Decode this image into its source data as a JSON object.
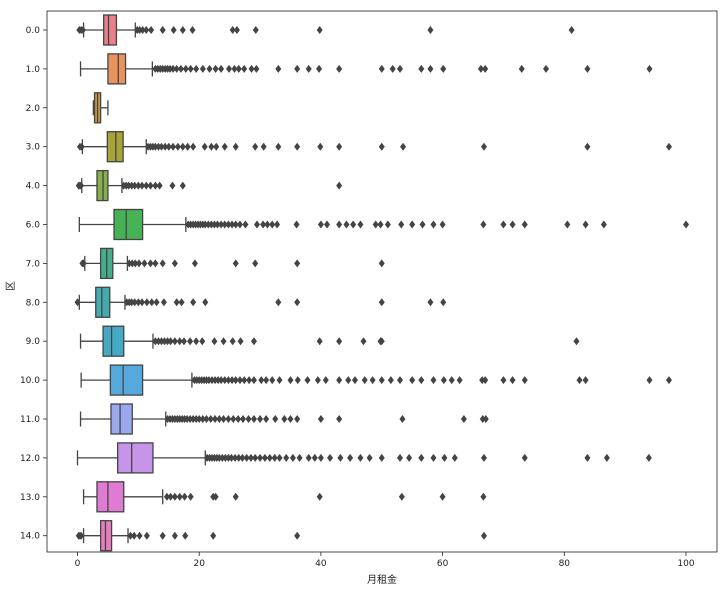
{
  "chart_data": {
    "type": "boxplot",
    "orientation": "horizontal",
    "xlabel": "月租金",
    "ylabel": "区",
    "xlim": [
      -5,
      105
    ],
    "xticks": [
      "0",
      "20",
      "40",
      "60",
      "80",
      "100"
    ],
    "xtick_values": [
      0,
      20,
      40,
      60,
      80,
      100
    ],
    "grid": false,
    "legend": "none",
    "categories": [
      "0.0",
      "1.0",
      "2.0",
      "3.0",
      "4.0",
      "6.0",
      "7.0",
      "8.0",
      "9.0",
      "10.0",
      "11.0",
      "12.0",
      "13.0",
      "14.0"
    ],
    "boxes": [
      {
        "label": "0.0",
        "color": "#e8818b",
        "whisker_low": 1.0,
        "q1": 4.3,
        "median": 5.1,
        "q3": 6.4,
        "whisker_high": 9.5,
        "outliers": [
          0.3,
          0.6,
          0.9,
          9.8,
          10.2,
          10.7,
          11.3,
          12.1,
          14.0,
          15.8,
          17.3,
          18.9,
          25.5,
          26.2,
          29.3,
          39.8,
          58.0,
          81.2
        ]
      },
      {
        "label": "1.0",
        "color": "#e8935c",
        "whisker_low": 0.5,
        "q1": 5.0,
        "median": 6.7,
        "q3": 7.9,
        "whisker_high": 12.3,
        "outliers": [
          12.8,
          13.2,
          13.6,
          14.0,
          14.4,
          14.8,
          15.2,
          15.7,
          16.3,
          17.0,
          17.8,
          18.6,
          19.5,
          20.6,
          21.7,
          22.7,
          23.6,
          24.9,
          25.8,
          26.5,
          27.4,
          28.6,
          29.4,
          33.0,
          36.1,
          38.0,
          39.7,
          43.0,
          50.0,
          51.8,
          53.0,
          56.5,
          58.0,
          60.1,
          66.3,
          67.0,
          73.0,
          77.0,
          83.8,
          94.0
        ]
      },
      {
        "label": "2.0",
        "color": "#c99a3a",
        "whisker_low": 2.6,
        "q1": 2.8,
        "median": 3.3,
        "q3": 3.8,
        "whisker_high": 5.0,
        "outliers": []
      },
      {
        "label": "3.0",
        "color": "#a7a339",
        "whisker_low": 0.8,
        "q1": 4.9,
        "median": 6.3,
        "q3": 7.5,
        "whisker_high": 11.3,
        "outliers": [
          0.4,
          0.7,
          11.6,
          12.0,
          12.4,
          12.8,
          13.3,
          13.8,
          14.4,
          15.0,
          15.7,
          16.5,
          17.3,
          18.1,
          19.0,
          20.9,
          22.0,
          22.8,
          24.2,
          26.0,
          29.2,
          30.6,
          33.0,
          36.1,
          39.9,
          43.0,
          50.0,
          53.5,
          66.8,
          83.8,
          97.2
        ]
      },
      {
        "label": "4.0",
        "color": "#86b04a",
        "whisker_low": 0.7,
        "q1": 3.2,
        "median": 4.2,
        "q3": 5.0,
        "whisker_high": 7.3,
        "outliers": [
          0.2,
          0.4,
          0.6,
          7.6,
          8.0,
          8.4,
          8.9,
          9.4,
          10.0,
          10.6,
          11.3,
          12.0,
          12.8,
          13.5,
          15.6,
          17.3,
          43.0
        ]
      },
      {
        "label": "6.0",
        "color": "#46b155",
        "whisker_low": 0.3,
        "q1": 6.0,
        "median": 8.0,
        "q3": 10.7,
        "whisker_high": 17.8,
        "outliers": [
          18.2,
          18.6,
          19.0,
          19.4,
          19.8,
          20.2,
          20.6,
          21.0,
          21.5,
          22.0,
          22.5,
          23.0,
          23.6,
          24.2,
          24.8,
          25.4,
          26.0,
          26.7,
          27.6,
          29.5,
          30.5,
          31.2,
          32.0,
          32.8,
          36.0,
          40.0,
          41.0,
          43.0,
          44.2,
          45.3,
          46.5,
          49.0,
          49.8,
          51.0,
          53.2,
          55.0,
          56.7,
          58.5,
          60.0,
          66.7,
          70.0,
          71.5,
          73.5,
          80.5,
          83.5,
          86.5,
          100.0
        ]
      },
      {
        "label": "7.0",
        "color": "#45ad8b",
        "whisker_low": 1.2,
        "q1": 3.8,
        "median": 4.8,
        "q3": 5.8,
        "whisker_high": 8.2,
        "outliers": [
          0.8,
          1.0,
          8.5,
          9.0,
          9.5,
          10.1,
          11.0,
          12.0,
          12.8,
          14.0,
          16.0,
          19.3,
          26.0,
          29.2,
          36.1,
          50.0
        ]
      },
      {
        "label": "8.0",
        "color": "#43abb0",
        "whisker_low": 0.3,
        "q1": 3.0,
        "median": 4.0,
        "q3": 5.3,
        "whisker_high": 7.8,
        "outliers": [
          0.0,
          8.1,
          8.5,
          8.9,
          9.4,
          10.0,
          10.6,
          11.4,
          12.2,
          13.0,
          14.2,
          16.3,
          17.1,
          19.0,
          21.0,
          33.0,
          36.1,
          50.0,
          58.0,
          60.1
        ]
      },
      {
        "label": "9.0",
        "color": "#44a9c4",
        "whisker_low": 0.5,
        "q1": 4.2,
        "median": 5.6,
        "q3": 7.6,
        "whisker_high": 12.4,
        "outliers": [
          12.8,
          13.3,
          13.8,
          14.3,
          14.8,
          15.3,
          16.0,
          16.8,
          17.5,
          18.5,
          19.5,
          20.5,
          22.5,
          24.0,
          25.5,
          26.8,
          29.0,
          39.8,
          43.0,
          47.0,
          49.8,
          50.0,
          82.0
        ]
      },
      {
        "label": "10.0",
        "color": "#55a9dc",
        "whisker_low": 0.6,
        "q1": 5.4,
        "median": 7.5,
        "q3": 10.7,
        "whisker_high": 18.8,
        "outliers": [
          19.2,
          19.6,
          20.0,
          20.4,
          20.8,
          21.2,
          21.6,
          22.1,
          22.6,
          23.1,
          23.6,
          24.2,
          24.8,
          25.4,
          26.0,
          26.7,
          27.4,
          28.2,
          29.0,
          30.2,
          31.0,
          32.0,
          33.2,
          35.0,
          36.2,
          37.8,
          39.5,
          40.8,
          43.0,
          44.5,
          45.6,
          47.2,
          48.5,
          50.0,
          51.5,
          53.0,
          55.0,
          56.5,
          58.5,
          60.2,
          61.5,
          62.8,
          66.5,
          67.0,
          70.0,
          71.5,
          73.5,
          82.5,
          83.5,
          94.0,
          97.2
        ]
      },
      {
        "label": "11.0",
        "color": "#9aa8ee",
        "whisker_low": 0.5,
        "q1": 5.5,
        "median": 7.0,
        "q3": 9.0,
        "whisker_high": 14.5,
        "outliers": [
          14.8,
          15.2,
          15.6,
          16.0,
          16.4,
          16.8,
          17.2,
          17.6,
          18.0,
          18.5,
          19.0,
          19.5,
          20.0,
          20.6,
          21.2,
          21.9,
          22.6,
          23.3,
          24.0,
          24.8,
          25.6,
          26.4,
          27.2,
          28.1,
          29.0,
          30.0,
          31.0,
          32.5,
          34.0,
          35.0,
          36.1,
          40.0,
          43.0,
          53.4,
          63.5,
          66.6,
          67.1
        ]
      },
      {
        "label": "12.0",
        "color": "#c694e9",
        "whisker_low": 0.0,
        "q1": 6.6,
        "median": 8.9,
        "q3": 12.4,
        "whisker_high": 21.0,
        "outliers": [
          21.3,
          21.7,
          22.1,
          22.5,
          22.9,
          23.3,
          23.8,
          24.3,
          24.8,
          25.3,
          25.9,
          26.5,
          27.1,
          27.8,
          28.5,
          29.2,
          30.0,
          30.8,
          31.6,
          32.4,
          33.2,
          34.3,
          35.4,
          36.5,
          38.0,
          39.0,
          40.0,
          41.5,
          43.2,
          44.8,
          46.5,
          48.0,
          50.0,
          53.0,
          54.5,
          56.5,
          58.5,
          60.3,
          62.0,
          66.8,
          73.5,
          83.8,
          87.0,
          93.9
        ]
      },
      {
        "label": "13.0",
        "color": "#e07bd4",
        "whisker_low": 1.0,
        "q1": 3.2,
        "median": 5.0,
        "q3": 7.6,
        "whisker_high": 14.0,
        "outliers": [
          14.7,
          15.3,
          16.0,
          16.8,
          17.6,
          18.6,
          22.3,
          22.7,
          26.0,
          39.8,
          53.3,
          60.0,
          66.7
        ]
      },
      {
        "label": "14.0",
        "color": "#e77fbe",
        "whisker_low": 1.0,
        "q1": 3.8,
        "median": 4.6,
        "q3": 5.6,
        "whisker_high": 8.3,
        "outliers": [
          0.2,
          0.4,
          0.6,
          8.7,
          9.3,
          10.2,
          11.4,
          14.0,
          16.0,
          17.7,
          22.3,
          36.1,
          66.8
        ]
      }
    ]
  },
  "colors": {
    "frame": "#222222",
    "line": "#444444",
    "outlier": "#444444",
    "background": "#ffffff"
  }
}
